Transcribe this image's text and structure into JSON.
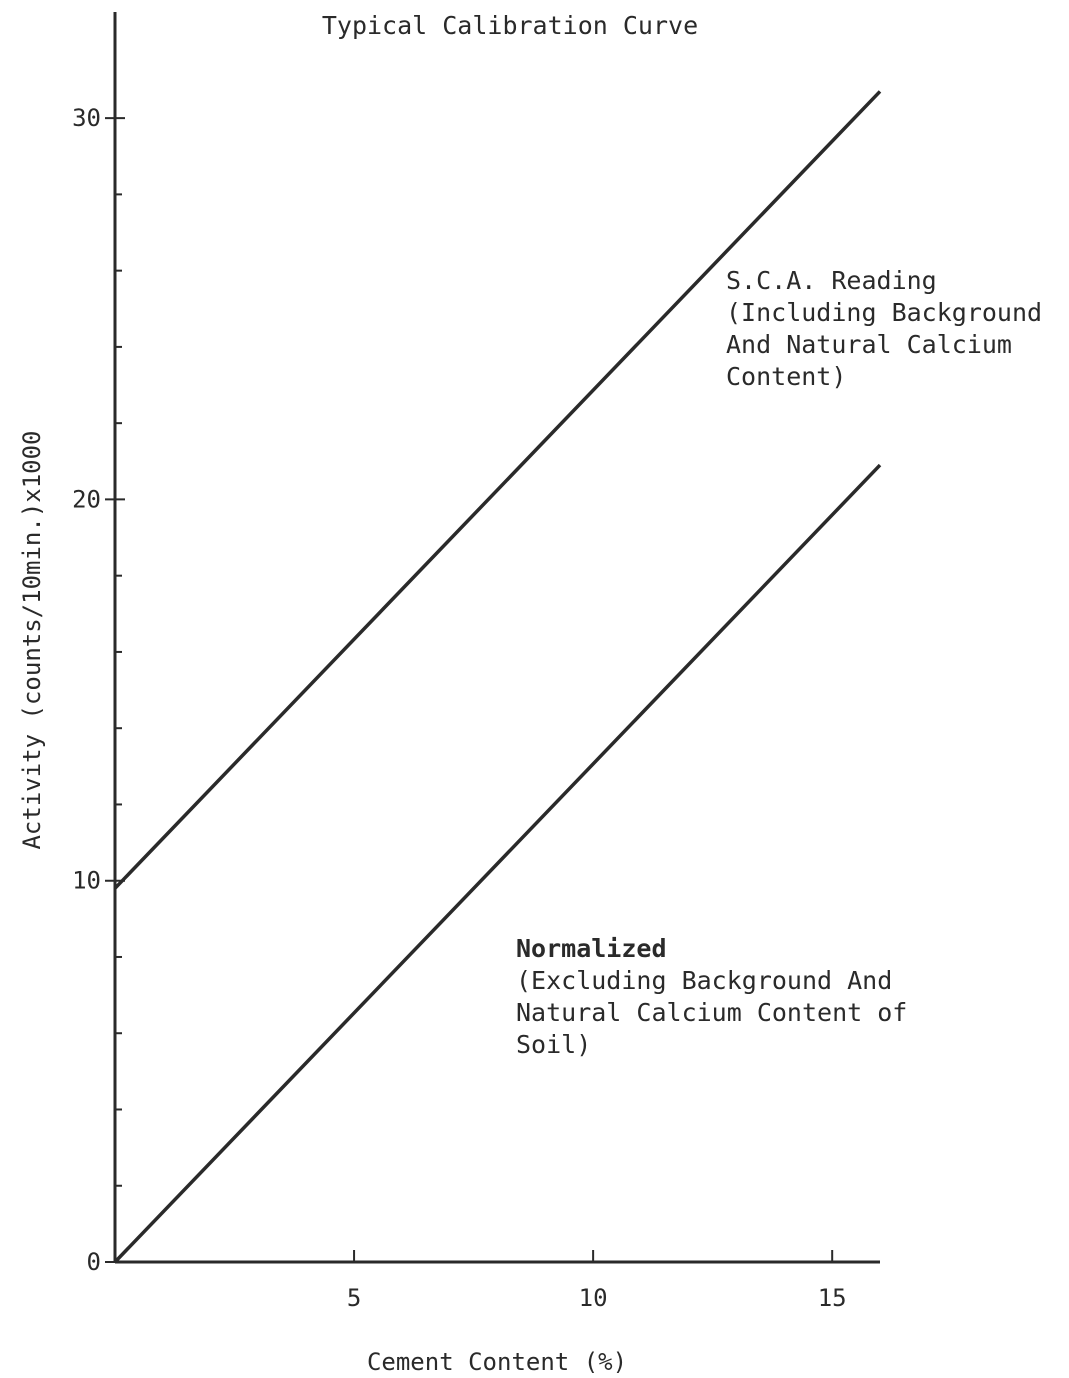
{
  "chart_data": {
    "type": "line",
    "title": "Typical Calibration Curve",
    "xlabel": "Cement Content (%)",
    "ylabel": "Activity (counts/10min.)x1000",
    "xlim": [
      0,
      16
    ],
    "ylim": [
      0,
      31
    ],
    "x_ticks": [
      {
        "value": 5,
        "label": "5"
      },
      {
        "value": 10,
        "label": "10"
      },
      {
        "value": 15,
        "label": "15"
      }
    ],
    "y_ticks": [
      {
        "value": 0,
        "label": "0"
      },
      {
        "value": 10,
        "label": "10"
      },
      {
        "value": 20,
        "label": "20"
      },
      {
        "value": 30,
        "label": "30"
      }
    ],
    "y_minor_step": 2,
    "grid": false,
    "series": [
      {
        "name": "S.C.A. Reading (Including Background And Natural Calcium Content)",
        "x": [
          0,
          16
        ],
        "y": [
          9.8,
          30.7
        ]
      },
      {
        "name": "Normalized (Excluding Background And Natural Calcium Content of Soil)",
        "x": [
          0,
          16
        ],
        "y": [
          0,
          20.9
        ]
      }
    ],
    "annotations": [
      {
        "lines": [
          "S.C.A. Reading",
          "(Including Background",
          "And Natural Calcium",
          "Content)"
        ],
        "bold_first": false
      },
      {
        "lines": [
          "Normalized",
          "(Excluding Background And",
          "Natural Calcium Content of",
          "Soil)"
        ],
        "bold_first": true
      }
    ]
  }
}
